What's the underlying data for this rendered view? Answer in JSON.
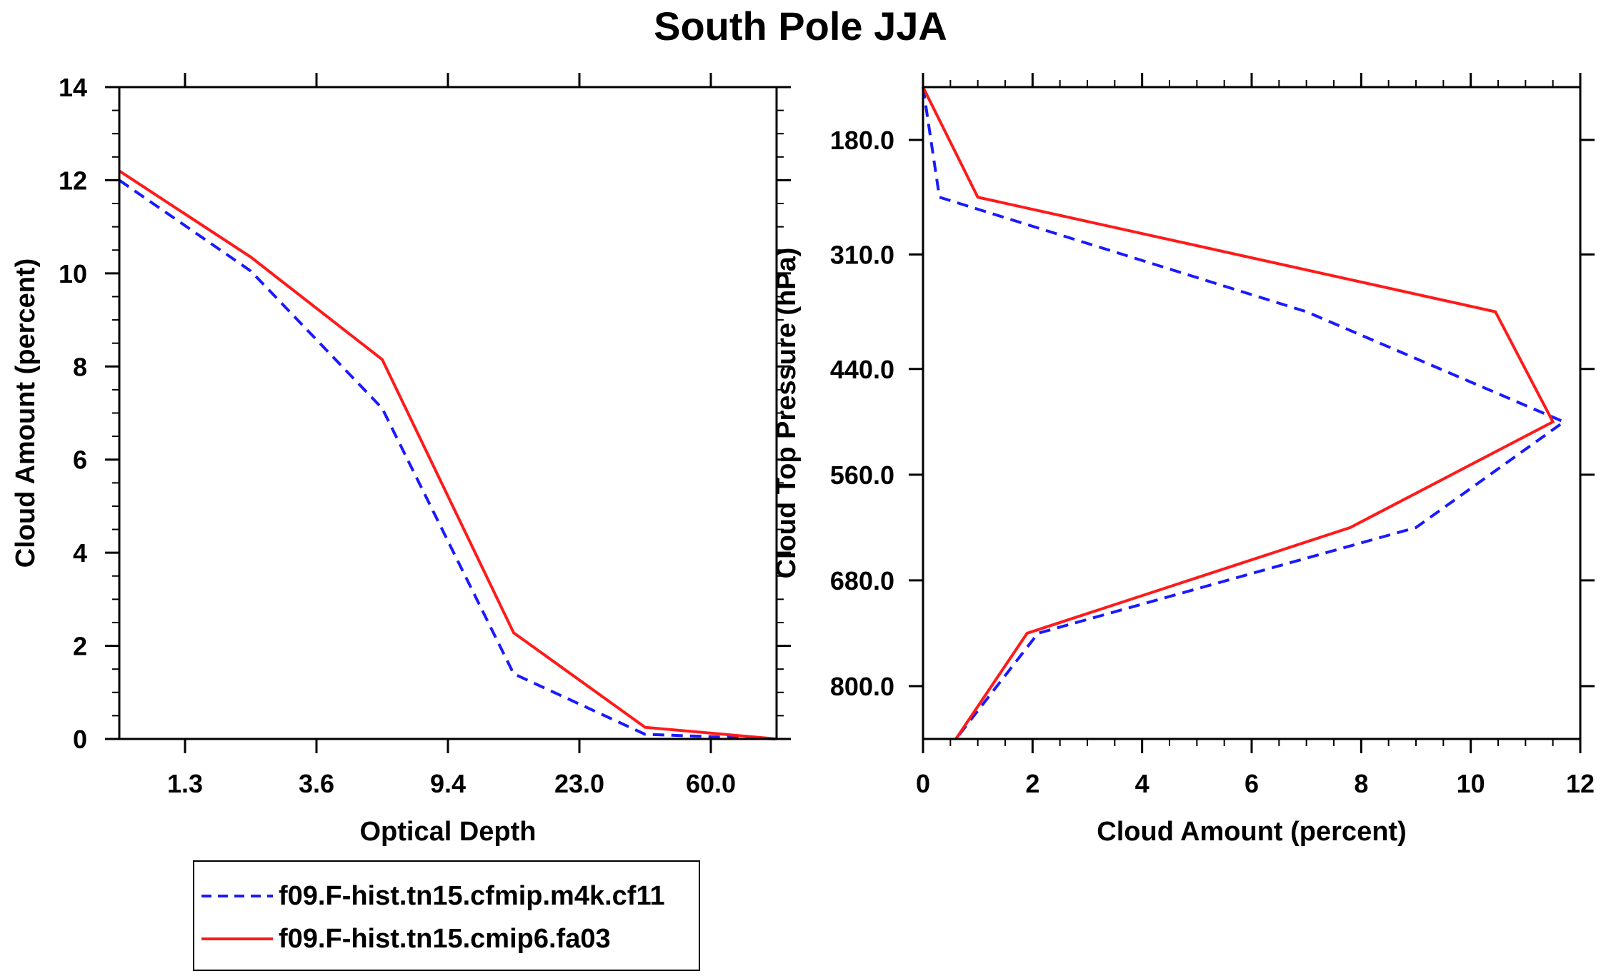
{
  "title": "South Pole JJA",
  "colors": {
    "series1": "#1a1aff",
    "series2": "#ff1a1a",
    "axis": "#000000"
  },
  "legend": {
    "entries": [
      {
        "name": "f09.F-hist.tn15.cfmip.m4k.cf11",
        "style": "dashed",
        "color": "#1a1aff"
      },
      {
        "name": "f09.F-hist.tn15.cmip6.fa03",
        "style": "solid",
        "color": "#ff1a1a"
      }
    ]
  },
  "chart_data": [
    {
      "type": "line",
      "title": "South Pole JJA",
      "xlabel": "Optical Depth",
      "ylabel": "Cloud Amount (percent)",
      "x_bins": [
        1,
        2,
        3,
        4,
        5,
        6
      ],
      "x_tick_positions": [
        1.5,
        2.5,
        3.5,
        4.5,
        5.5
      ],
      "x_tick_labels": [
        "1.3",
        "3.6",
        "9.4",
        "23.0",
        "60.0"
      ],
      "xlim": [
        1,
        6
      ],
      "ylim": [
        0,
        14
      ],
      "y_ticks": [
        0,
        2,
        4,
        6,
        8,
        10,
        12,
        14
      ],
      "y_tick_labels": [
        "0",
        "2",
        "4",
        "6",
        "8",
        "10",
        "12",
        "14"
      ],
      "series": [
        {
          "name": "f09.F-hist.tn15.cfmip.m4k.cf11",
          "style": "dashed",
          "values": [
            12.0,
            10.05,
            7.1,
            1.4,
            0.1,
            0.0
          ]
        },
        {
          "name": "f09.F-hist.tn15.cmip6.fa03",
          "style": "solid",
          "values": [
            12.2,
            10.35,
            8.15,
            2.28,
            0.25,
            0.0
          ]
        }
      ]
    },
    {
      "type": "line",
      "xlabel": "Cloud Amount (percent)",
      "ylabel": "Cloud Top Pressure (hPa)",
      "orientation": "horizontal-profile",
      "xlim": [
        0,
        12
      ],
      "x_ticks": [
        0,
        2,
        4,
        6,
        8,
        10,
        12
      ],
      "x_tick_labels": [
        "0",
        "2",
        "4",
        "6",
        "8",
        "10",
        "12"
      ],
      "pressure_levels": [
        120,
        245,
        375,
        500,
        620,
        740,
        860
      ],
      "ylim": [
        120,
        860
      ],
      "y_ticks": [
        180,
        310,
        440,
        560,
        680,
        800
      ],
      "y_tick_labels": [
        "180.0",
        "310.0",
        "440.0",
        "560.0",
        "680.0",
        "800.0"
      ],
      "series": [
        {
          "name": "f09.F-hist.tn15.cfmip.m4k.cf11",
          "style": "dashed",
          "values": [
            0.0,
            0.3,
            7.0,
            11.7,
            9.0,
            2.1,
            0.6
          ]
        },
        {
          "name": "f09.F-hist.tn15.cmip6.fa03",
          "style": "solid",
          "values": [
            0.0,
            1.0,
            10.45,
            11.5,
            7.8,
            1.9,
            0.6
          ]
        }
      ]
    }
  ]
}
